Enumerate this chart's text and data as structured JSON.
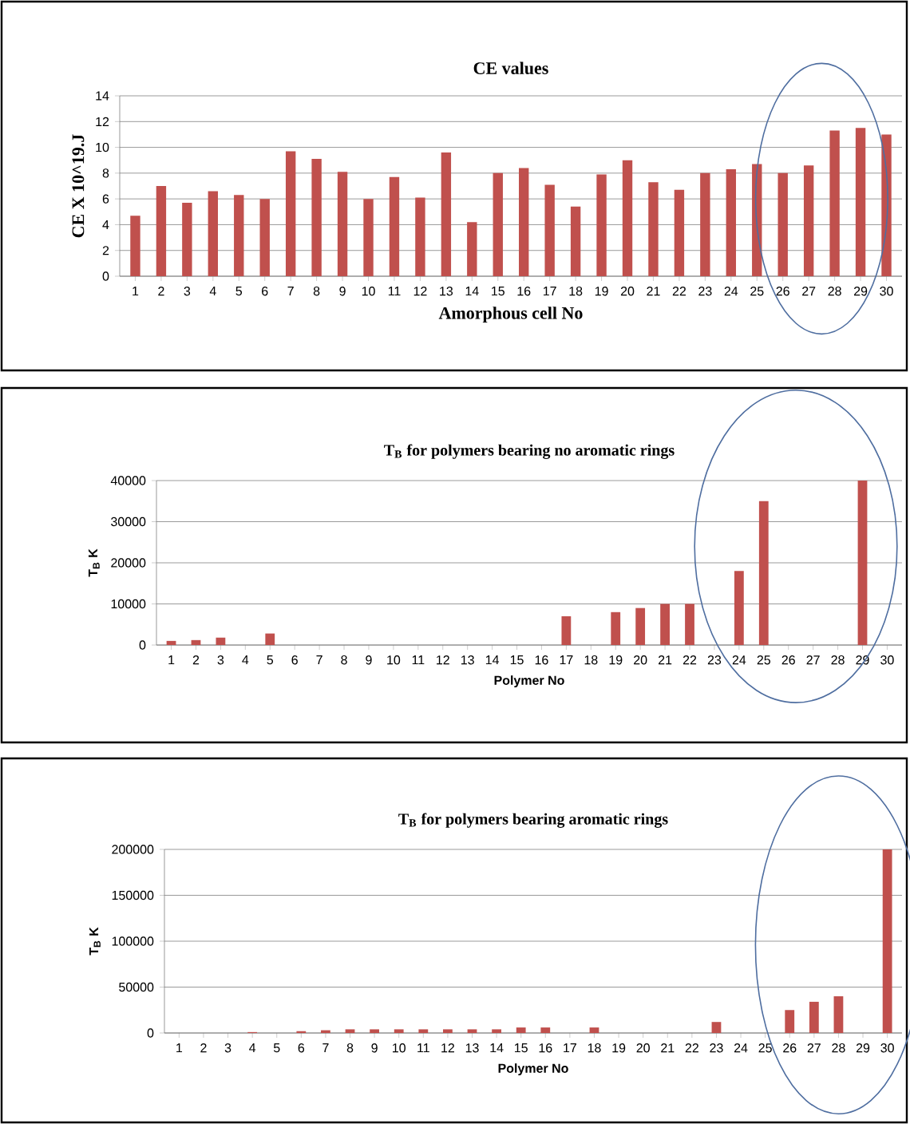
{
  "chart_data": [
    {
      "type": "bar",
      "title": "CE values",
      "xlabel": "Amorphous cell No",
      "ylabel": "CE X 10^19.J",
      "categories": [
        "1",
        "2",
        "3",
        "4",
        "5",
        "6",
        "7",
        "8",
        "9",
        "10",
        "11",
        "12",
        "13",
        "14",
        "15",
        "16",
        "17",
        "18",
        "19",
        "20",
        "21",
        "22",
        "23",
        "24",
        "25",
        "26",
        "27",
        "28",
        "29",
        "30"
      ],
      "values": [
        4.7,
        7,
        5.7,
        6.6,
        6.3,
        6,
        9.7,
        9.1,
        8.1,
        6,
        7.7,
        6.1,
        9.6,
        4.2,
        8,
        8.4,
        7.1,
        5.4,
        7.9,
        9,
        7.3,
        6.7,
        8,
        8.3,
        8.7,
        8,
        8.6,
        11.3,
        11.5,
        11
      ],
      "color": "#c0504d",
      "ylim": [
        0,
        14
      ],
      "yticks": [
        0,
        2,
        4,
        6,
        8,
        10,
        12,
        14
      ],
      "grid": "y"
    },
    {
      "type": "bar",
      "title": "T$_{B}$ for polymers bearing no aromatic rings",
      "xlabel": "Polymer No",
      "ylabel": "T$_{B}$  K",
      "categories": [
        "1",
        "2",
        "3",
        "4",
        "5",
        "6",
        "7",
        "8",
        "9",
        "10",
        "11",
        "12",
        "13",
        "14",
        "15",
        "16",
        "17",
        "18",
        "19",
        "20",
        "21",
        "22",
        "23",
        "24",
        "25",
        "26",
        "27",
        "28",
        "29",
        "30"
      ],
      "values": [
        1000,
        1200,
        1800,
        0,
        2800,
        0,
        0,
        0,
        0,
        0,
        0,
        0,
        0,
        0,
        0,
        0,
        7000,
        0,
        8000,
        9000,
        10000,
        10000,
        0,
        18000,
        35000,
        0,
        0,
        0,
        40000,
        0
      ],
      "color": "#c0504d",
      "ylim": [
        0,
        40000
      ],
      "yticks": [
        0,
        10000,
        20000,
        30000,
        40000
      ],
      "grid": "y"
    },
    {
      "type": "bar",
      "title": "T$_{B}$ for polymers bearing aromatic rings",
      "xlabel": "Polymer No",
      "ylabel": "T$_{B}$  K",
      "categories": [
        "1",
        "2",
        "3",
        "4",
        "5",
        "6",
        "7",
        "8",
        "9",
        "10",
        "11",
        "12",
        "13",
        "14",
        "15",
        "16",
        "17",
        "18",
        "19",
        "20",
        "21",
        "22",
        "23",
        "24",
        "25",
        "26",
        "27",
        "28",
        "29",
        "30"
      ],
      "values": [
        0,
        0,
        0,
        1000,
        0,
        2000,
        3000,
        4000,
        4000,
        4000,
        4000,
        4000,
        4000,
        4000,
        6000,
        6000,
        0,
        6000,
        0,
        0,
        0,
        0,
        12000,
        0,
        0,
        25000,
        34000,
        40000,
        0,
        200000
      ],
      "color": "#c0504d",
      "ylim": [
        0,
        200000
      ],
      "yticks": [
        0,
        50000,
        100000,
        150000,
        200000
      ],
      "grid": "y"
    }
  ]
}
